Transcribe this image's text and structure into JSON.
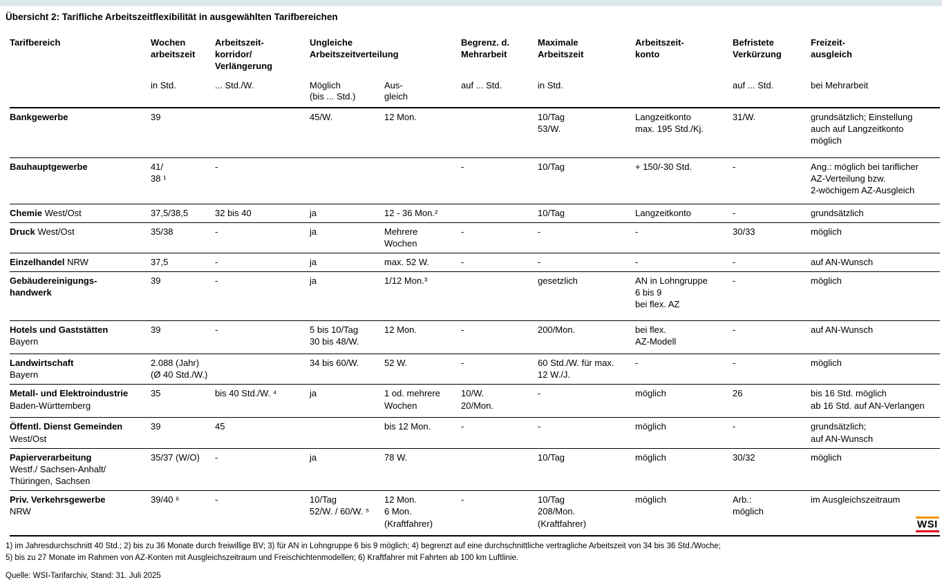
{
  "page": {
    "title": "Übersicht 2: Tarifliche Arbeitszeitflexibilität in ausgewählten Tarifbereichen",
    "top_bar_color": "#dce8ec"
  },
  "table": {
    "header": {
      "cells": [
        {
          "label": "Tarifbereich",
          "colspan": 1
        },
        {
          "label": "Wochen\narbeitszeit",
          "colspan": 1
        },
        {
          "label": "Arbeitszeit-\nkorridor/\nVerlängerung",
          "colspan": 1
        },
        {
          "label": "Ungleiche\nArbeitszeitverteilung",
          "colspan": 2
        },
        {
          "label": "Begrenz. d.\nMehrarbeit",
          "colspan": 1
        },
        {
          "label": "Maximale\nArbeitszeit",
          "colspan": 1
        },
        {
          "label": "Arbeitszeit-\nkonto",
          "colspan": 1
        },
        {
          "label": "Befristete\nVerkürzung",
          "colspan": 1
        },
        {
          "label": "Freizeit-\nausgleich",
          "colspan": 1
        }
      ],
      "units": [
        "",
        "in Std.",
        "... Std./W.",
        "Möglich\n(bis ... Std.)",
        "Aus-\ngleich",
        "auf ... Std.",
        "in Std.",
        "",
        "auf ... Std.",
        "bei Mehrarbeit"
      ]
    },
    "rows": [
      {
        "name": "Bankgewerbe",
        "region": "",
        "region_inline": false,
        "cells": [
          "39",
          "",
          "45/W.",
          "12 Mon.",
          "",
          "10/Tag\n53/W.",
          "Langzeitkonto\nmax. 195 Std./Kj.",
          "31/W.",
          "grundsätzlich; Einstellung\nauch auf Langzeitkonto\nmöglich"
        ]
      },
      {
        "name": "Bauhauptgewerbe",
        "region": "",
        "region_inline": false,
        "cells": [
          "41/\n38 ¹",
          "-",
          "",
          "",
          "-",
          "10/Tag",
          "+ 150/-30 Std.",
          "-",
          "Ang.: möglich bei tariflicher\nAZ-Verteilung bzw.\n2-wöchigem AZ-Ausgleich"
        ]
      },
      {
        "name": "Chemie",
        "region": "West/Ost",
        "region_inline": true,
        "cells": [
          "37,5/38,5",
          "32 bis 40",
          "ja",
          "12 - 36 Mon.²",
          "",
          "10/Tag",
          "Langzeitkonto",
          "-",
          "grundsätzlich"
        ]
      },
      {
        "name": "Druck",
        "region": "West/Ost",
        "region_inline": true,
        "cells": [
          "35/38",
          "-",
          "ja",
          "Mehrere\nWochen",
          "-",
          "-",
          "-",
          "30/33",
          "möglich"
        ]
      },
      {
        "name": "Einzelhandel",
        "region": "NRW",
        "region_inline": true,
        "cells": [
          "37,5",
          "-",
          "ja",
          "max. 52 W.",
          "-",
          "-",
          "-",
          "-",
          "auf AN-Wunsch"
        ]
      },
      {
        "name": "Gebäudereinigungs-\nhandwerk",
        "region": "",
        "region_inline": false,
        "cells": [
          "39",
          "-",
          "ja",
          "1/12 Mon.³",
          "",
          "gesetzlich",
          "AN in Lohngruppe\n6 bis 9\nbei flex. AZ",
          "-",
          "möglich"
        ]
      },
      {
        "name": "Hotels und Gaststätten",
        "region": "Bayern",
        "region_inline": false,
        "cells": [
          "39",
          "-",
          "5 bis 10/Tag\n30 bis 48/W.",
          "12 Mon.",
          "-",
          "200/Mon.",
          "bei flex.\nAZ-Modell",
          "-",
          "auf AN-Wunsch"
        ]
      },
      {
        "name": "Landwirtschaft",
        "region": "Bayern",
        "region_inline": false,
        "cells": [
          "2.088 (Jahr)\n(Ø 40 Std./W.)",
          "",
          "34 bis 60/W.",
          "52 W.",
          "-",
          "60 Std./W. für max.\n12 W./J.",
          "-",
          "-",
          "möglich"
        ]
      },
      {
        "name": "Metall- und Elektroindustrie",
        "region": "Baden-Württemberg",
        "region_inline": false,
        "cells": [
          "35",
          "bis 40 Std./W. ⁴",
          "ja",
          "1 od. mehrere\nWochen",
          "10/W.\n20/Mon.",
          "-",
          "möglich",
          "26",
          "bis 16 Std. möglich\nab 16 Std. auf AN-Verlangen"
        ]
      },
      {
        "name": "Öffentl. Dienst Gemeinden",
        "region": "West/Ost",
        "region_inline": false,
        "cells": [
          "39",
          "45",
          "",
          "bis 12 Mon.",
          "-",
          "-",
          "möglich",
          "-",
          "grundsätzlich;\nauf AN-Wunsch"
        ]
      },
      {
        "name": "Papierverarbeitung",
        "region": "Westf./ Sachsen-Anhalt/\nThüringen, Sachsen",
        "region_inline": false,
        "cells": [
          "35/37 (W/O)",
          "-",
          "ja",
          "78 W.",
          "",
          "10/Tag",
          "möglich",
          "30/32",
          "möglich"
        ]
      },
      {
        "name": "Priv. Verkehrsgewerbe",
        "region": "NRW",
        "region_inline": false,
        "cells": [
          "39/40 ⁶",
          "-",
          "10/Tag\n52/W. / 60/W. ⁵",
          "12 Mon.\n6 Mon.\n(Kraftfahrer)",
          "-",
          "10/Tag\n208/Mon.\n(Kraftfahrer)",
          "möglich",
          "Arb.:\nmöglich",
          "im Ausgleichszeitraum"
        ]
      }
    ]
  },
  "footnotes": [
    "1) im Jahresdurchschnitt 40 Std.; 2) bis zu 36 Monate durch freiwillige BV; 3) für AN in Lohngruppe 6 bis 9 möglich; 4) begrenzt auf eine durchschnittliche vertragliche Arbeitszeit von 34 bis 36 Std./Woche;",
    "5) bis zu 27 Monate im Rahmen von AZ-Konten mit Ausgleichszeitraum und Freischichtenmodellen; 6) Kraftfahrer mit Fahrten ab 100 km Luftlinie."
  ],
  "source": "Quelle: WSI-Tarifarchiv, Stand: 31. Juli 2025",
  "logo": {
    "text": "WSI",
    "top_bar_color": "#F29400",
    "bottom_bar_color": "#E2001A"
  }
}
